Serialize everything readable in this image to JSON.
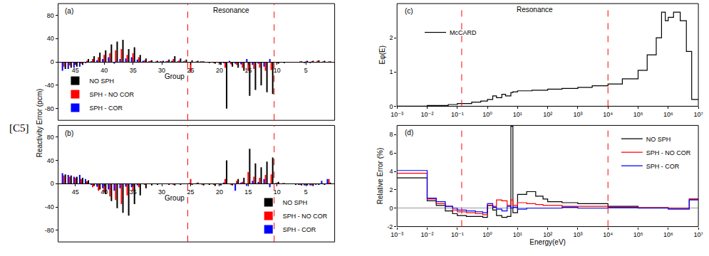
{
  "label": "[C5]",
  "chart_data": [
    {
      "title": "(a)",
      "type": "bar",
      "xlabel": "Group",
      "ylabel": "Reactivity Error (pcm)",
      "x": [
        47,
        46,
        45,
        44,
        43,
        42,
        41,
        40,
        39,
        38,
        37,
        36,
        35,
        34,
        33,
        32,
        31,
        30,
        29,
        28,
        27,
        26,
        25,
        24,
        23,
        22,
        21,
        20,
        19,
        18,
        17,
        16,
        15,
        14,
        13,
        12,
        11,
        10,
        9,
        8,
        7,
        6,
        5,
        4,
        3,
        2,
        1
      ],
      "xlim": [
        48,
        0
      ],
      "xticks": [
        45,
        40,
        35,
        30,
        25,
        20,
        15,
        10,
        5
      ],
      "ylim": [
        -100,
        100
      ],
      "yticks": [
        -80,
        -40,
        0,
        40,
        80
      ],
      "vlines": [
        25.5,
        10.5
      ],
      "annotations": [
        {
          "text": "Resonance"
        }
      ],
      "legend": "lower left",
      "series": [
        {
          "name": "NO SPH",
          "color": "#000000",
          "values": [
            -12,
            -10,
            -8,
            -5,
            5,
            10,
            16,
            20,
            30,
            35,
            38,
            22,
            25,
            12,
            6,
            3,
            2,
            2,
            4,
            10,
            6,
            4,
            3,
            2,
            1,
            -2,
            -3,
            -5,
            -80,
            -8,
            -10,
            -15,
            -58,
            -48,
            -40,
            -52,
            -55,
            -3,
            -2,
            -1,
            0,
            1,
            2,
            2,
            3,
            2,
            1
          ]
        },
        {
          "name": "SPH - NO COR",
          "color": "#ff0000",
          "values": [
            -8,
            -6,
            -5,
            -3,
            2,
            5,
            8,
            12,
            15,
            20,
            22,
            12,
            15,
            8,
            3,
            2,
            1,
            1,
            2,
            5,
            3,
            2,
            -18,
            1,
            1,
            -1,
            -2,
            -3,
            -10,
            -4,
            -5,
            -10,
            -15,
            -12,
            -10,
            -15,
            -14,
            -2,
            -1,
            0,
            0,
            1,
            1,
            1,
            2,
            1,
            1
          ]
        },
        {
          "name": "SPH - COR",
          "color": "#0000ff",
          "values": [
            -15,
            -12,
            -10,
            -8,
            -2,
            1,
            3,
            5,
            8,
            -3,
            5,
            6,
            8,
            4,
            2,
            1,
            0,
            1,
            1,
            2,
            1,
            1,
            0,
            0,
            1,
            0,
            -1,
            -1,
            -2,
            2,
            -3,
            -4,
            5,
            -5,
            -3,
            -8,
            5,
            -1,
            0,
            0,
            0,
            -1,
            -2,
            -2,
            -1,
            -1,
            -1
          ]
        }
      ]
    },
    {
      "title": "(b)",
      "type": "bar",
      "xlabel": "Group",
      "x": [
        47,
        46,
        45,
        44,
        43,
        42,
        41,
        40,
        39,
        38,
        37,
        36,
        35,
        34,
        33,
        32,
        31,
        30,
        29,
        28,
        27,
        26,
        25,
        24,
        23,
        22,
        21,
        20,
        19,
        18,
        17,
        16,
        15,
        14,
        13,
        12,
        11,
        10,
        9,
        8,
        7,
        6,
        5,
        4,
        3,
        2,
        1
      ],
      "xlim": [
        48,
        0
      ],
      "xticks": [
        45,
        40,
        35,
        30,
        25,
        20,
        15,
        10,
        5
      ],
      "ylim": [
        -100,
        100
      ],
      "yticks": [
        -80,
        -40,
        0,
        40,
        80
      ],
      "vlines": [
        25.5,
        10.5
      ],
      "legend": "lower right",
      "series": [
        {
          "name": "NO SPH",
          "color": "#000000",
          "values": [
            16,
            14,
            12,
            10,
            6,
            -4,
            -10,
            -18,
            -30,
            -42,
            -50,
            -55,
            -35,
            -20,
            -8,
            -3,
            -2,
            -1,
            -2,
            -3,
            -2,
            -1,
            -2,
            2,
            -3,
            -2,
            -4,
            -3,
            40,
            -3,
            8,
            10,
            60,
            35,
            28,
            38,
            45,
            3,
            1,
            0,
            -2,
            -3,
            -3,
            -4,
            -2,
            -2,
            2
          ]
        },
        {
          "name": "SPH - NO COR",
          "color": "#ff0000",
          "values": [
            14,
            12,
            10,
            8,
            4,
            -6,
            -12,
            -15,
            -22,
            -28,
            -35,
            -20,
            -12,
            -6,
            -2,
            -1,
            -1,
            0,
            -1,
            -2,
            -1,
            -1,
            8,
            1,
            -2,
            -1,
            -2,
            -2,
            8,
            -2,
            5,
            3,
            20,
            12,
            10,
            15,
            16,
            2,
            1,
            0,
            -1,
            -2,
            -2,
            -3,
            -1,
            -1,
            8
          ]
        },
        {
          "name": "SPH - COR",
          "color": "#0000ff",
          "values": [
            18,
            15,
            12,
            15,
            8,
            -2,
            -5,
            -8,
            -10,
            -12,
            -8,
            -5,
            -6,
            -3,
            -1,
            0,
            0,
            0,
            0,
            -1,
            0,
            0,
            1,
            0,
            -1,
            0,
            -1,
            -1,
            2,
            -1,
            -12,
            2,
            -4,
            5,
            3,
            8,
            -6,
            1,
            0,
            0,
            -1,
            -2,
            -3,
            -3,
            -2,
            5,
            8
          ]
        }
      ]
    },
    {
      "title": "(c)",
      "type": "line",
      "ylabel": "Eφ(E)",
      "log": "x",
      "x": [
        0.001,
        0.01,
        0.05,
        0.1,
        0.3,
        0.6,
        1,
        1.5,
        2,
        3,
        4,
        6,
        7,
        10,
        30,
        100,
        300,
        1000,
        3000,
        10000,
        30000,
        100000,
        200000,
        400000,
        600000,
        800000,
        1000000,
        1500000,
        2500000,
        4000000,
        6000000,
        10000000
      ],
      "xlim": [
        0.001,
        10000000
      ],
      "xticks": [
        {
          "value": 0.001,
          "label": "10⁻³"
        },
        {
          "value": 0.01,
          "label": "10⁻²"
        },
        {
          "value": 0.1,
          "label": "10⁻¹"
        },
        {
          "value": 1,
          "label": "10⁰"
        },
        {
          "value": 10,
          "label": "10¹"
        },
        {
          "value": 100,
          "label": "10²"
        },
        {
          "value": 1000,
          "label": "10³"
        },
        {
          "value": 10000,
          "label": "10⁴"
        },
        {
          "value": 100000,
          "label": "10⁵"
        },
        {
          "value": 1000000,
          "label": "10⁶"
        },
        {
          "value": 10000000,
          "label": "10⁷"
        }
      ],
      "ylim": [
        0,
        3
      ],
      "yticks": [
        0,
        1,
        2
      ],
      "vlines": [
        0.14,
        10000
      ],
      "annotations": [
        {
          "text": "Resonance"
        }
      ],
      "legend": "upper left",
      "series": [
        {
          "name": "McCARD",
          "color": "#000000",
          "line_style": "step",
          "values": [
            0.0,
            0.02,
            0.05,
            0.08,
            0.12,
            0.15,
            0.2,
            0.3,
            0.25,
            0.35,
            0.3,
            0.4,
            0.42,
            0.45,
            0.47,
            0.5,
            0.52,
            0.55,
            0.6,
            0.65,
            0.8,
            1.05,
            1.5,
            2.0,
            2.75,
            2.5,
            2.6,
            2.75,
            2.5,
            1.6,
            0.2,
            0.2
          ]
        }
      ]
    },
    {
      "title": "(d)",
      "type": "line",
      "xlabel": "Energy(eV)",
      "ylabel": "Relative Error (%)",
      "log": "x",
      "x": [
        0.001,
        0.01,
        0.02,
        0.04,
        0.07,
        0.1,
        0.2,
        0.4,
        0.7,
        1,
        1.5,
        2,
        3,
        4.5,
        6,
        7,
        10,
        20,
        40,
        70,
        100,
        300,
        1000,
        10000,
        100000,
        1000000,
        5000000,
        10000000
      ],
      "xlim": [
        0.001,
        10000000
      ],
      "xticks": [
        {
          "value": 0.001,
          "label": "10⁻³"
        },
        {
          "value": 0.01,
          "label": "10⁻²"
        },
        {
          "value": 0.1,
          "label": "10⁻¹"
        },
        {
          "value": 1,
          "label": "10⁰"
        },
        {
          "value": 10,
          "label": "10¹"
        },
        {
          "value": 100,
          "label": "10²"
        },
        {
          "value": 1000,
          "label": "10³"
        },
        {
          "value": 10000,
          "label": "10⁴"
        },
        {
          "value": 100000,
          "label": "10⁵"
        },
        {
          "value": 1000000,
          "label": "10⁶"
        },
        {
          "value": 10000000,
          "label": "10⁷"
        }
      ],
      "ylim": [
        -2,
        9
      ],
      "yticks": [
        -2,
        0,
        2,
        4,
        6,
        8
      ],
      "vlines": [
        0.14,
        10000
      ],
      "legend": "upper right",
      "series": [
        {
          "name": "NO SPH",
          "color": "#000000",
          "line_style": "step",
          "values": [
            3.3,
            0.8,
            0.3,
            -0.3,
            -0.6,
            -0.8,
            -0.9,
            -0.9,
            -1.0,
            0.3,
            -0.2,
            -0.8,
            -1.0,
            -0.9,
            8.9,
            -0.5,
            1.5,
            1.8,
            1.3,
            1.0,
            0.7,
            0.6,
            0.5,
            0.2,
            0.05,
            0.0,
            1.0,
            1.0
          ]
        },
        {
          "name": "SPH - NO COR",
          "color": "#ff0000",
          "line_style": "step",
          "values": [
            3.8,
            1.0,
            0.5,
            0.2,
            -0.2,
            -0.4,
            -0.5,
            -0.6,
            -0.7,
            0.3,
            0.2,
            0.9,
            0.8,
            0.3,
            0.9,
            0.3,
            0.6,
            0.5,
            0.4,
            0.3,
            0.3,
            0.2,
            0.2,
            0.1,
            0.05,
            0.0,
            1.0,
            1.0
          ]
        },
        {
          "name": "SPH - COR",
          "color": "#0000ff",
          "line_style": "step",
          "values": [
            4.1,
            1.1,
            0.7,
            0.2,
            0.0,
            -0.2,
            -0.3,
            -0.4,
            -0.5,
            0.5,
            0.1,
            -0.1,
            -0.3,
            0.2,
            0.0,
            0.1,
            -0.1,
            0.0,
            0.0,
            0.0,
            0.0,
            0.1,
            0.0,
            0.05,
            0.0,
            -0.1,
            0.9,
            0.9
          ]
        }
      ]
    }
  ]
}
